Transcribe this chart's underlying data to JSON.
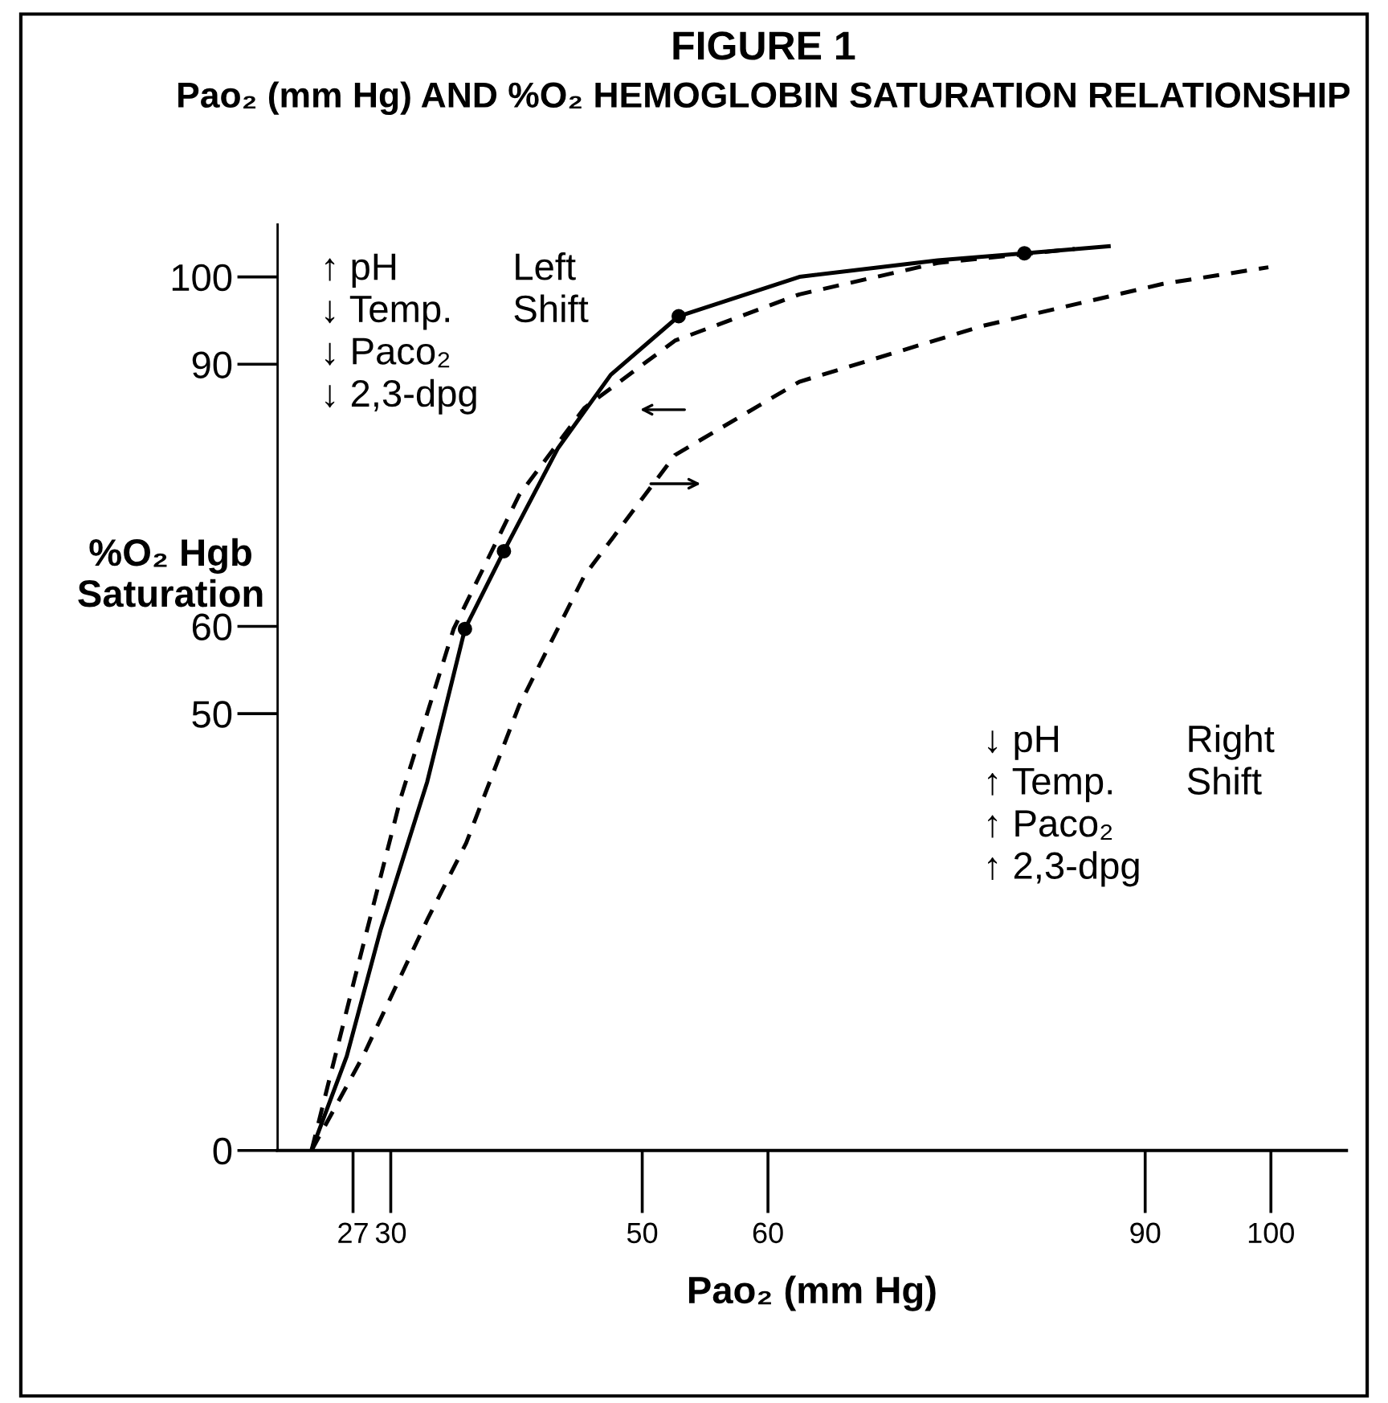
{
  "chart_data": {
    "type": "line",
    "title": "FIGURE 1",
    "subtitle": "Pao₂ (mm Hg) AND %O₂ HEMOGLOBIN SATURATION RELATIONSHIP",
    "xlabel": "Pao₂ (mm Hg)",
    "ylabel": "%O₂ Hgb\nSaturation",
    "xlim": [
      21,
      106
    ],
    "ylim": [
      0,
      106
    ],
    "xticks": [
      27,
      30,
      50,
      60,
      90,
      100
    ],
    "yticks": [
      0,
      50,
      60,
      90,
      100
    ],
    "grid": false,
    "legend": false,
    "series": [
      {
        "color": "#000000",
        "line_style": "dashed",
        "x": [
          23.7,
          27.1,
          30.8,
          35,
          40.2,
          45.4,
          52.6,
          62.5,
          73.5,
          84.4
        ],
        "values": [
          0,
          19.5,
          40.4,
          59.7,
          75,
          85,
          92.7,
          98,
          101.6,
          103.2
        ]
      },
      {
        "color": "#000000",
        "line_style": "solid",
        "x": [
          23.7,
          26.5,
          29.2,
          32.9,
          35.9,
          39,
          43.3,
          47.5,
          52.9,
          62.5,
          73.5,
          80.4,
          87.1
        ],
        "values": [
          0,
          10.8,
          25.3,
          42.2,
          59.7,
          68.6,
          80.4,
          88.8,
          95.5,
          100,
          101.9,
          102.7,
          103.5
        ]
      },
      {
        "color": "#000000",
        "line_style": "dashed",
        "x": [
          23.7,
          27.8,
          32.9,
          36,
          40.2,
          45.4,
          52.6,
          62.5,
          77.1,
          91.4,
          99.8
        ],
        "values": [
          0,
          10.8,
          26.4,
          35.2,
          50.9,
          65.8,
          79.6,
          88,
          94.4,
          99.2,
          101.1
        ]
      },
      {
        "type": "scatter",
        "color": "#000000",
        "marker": "circle",
        "x": [
          35.9,
          39,
          52.9,
          80.4
        ],
        "values": [
          59.7,
          68.6,
          95.5,
          102.7
        ]
      }
    ],
    "annotations": [
      "↑ pH\n↓ Temp.\n↓ Paco₂\n↓ 2,3-dpg",
      "Left\nShift",
      "↓ pH\n↑ Temp.\n↑ Paco₂\n↑ 2,3-dpg",
      "Right\nShift"
    ]
  }
}
